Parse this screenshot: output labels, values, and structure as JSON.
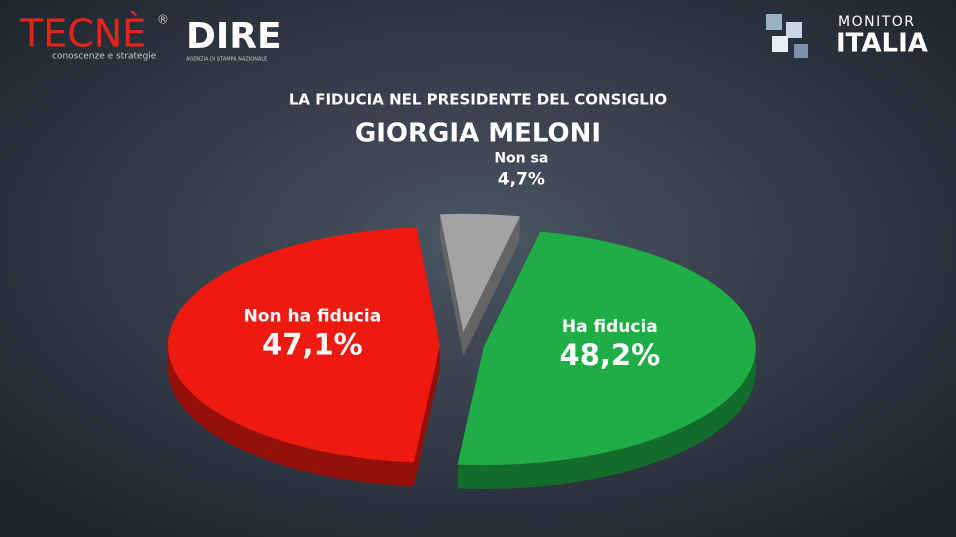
{
  "logos": {
    "tecne": "TECNÈ",
    "tecne_mark": "®",
    "tecne_tagline": "conoscenze e strategie",
    "dire": "DIRE",
    "dire_tagline": "AGENZIA DI STAMPA NAZIONALE",
    "monitor": "MONITOR",
    "italia": "ITALIA"
  },
  "chart_data": {
    "type": "pie",
    "title": "LA FIDUCIA NEL PRESIDENTE DEL CONSIGLIO",
    "subtitle": "GIORGIA MELONI",
    "categories": [
      "Ha fiducia",
      "Non ha fiducia",
      "Non sa"
    ],
    "values": [
      48.2,
      47.1,
      4.7
    ],
    "value_labels": [
      "48,2%",
      "47,1%",
      "4,7%"
    ],
    "colors": [
      "#1fae45",
      "#ee1a10",
      "#a3a3a3"
    ]
  }
}
